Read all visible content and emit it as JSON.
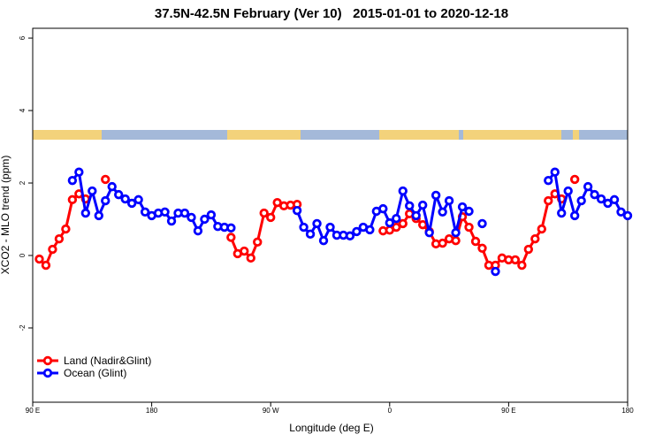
{
  "chart_data": {
    "type": "line",
    "title": "37.5N-42.5N February (Ver 10)   2015-01-01 to 2020-12-18",
    "x_label": "Longitude (deg E)",
    "y_label": "XCO2 - MLO trend (ppm)",
    "xlim": [
      90,
      540
    ],
    "ylim": [
      -4.05,
      6.27
    ],
    "xticks": [
      {
        "value": 90,
        "label": "90 E"
      },
      180,
      {
        "value": 270,
        "label": "90 W"
      },
      {
        "value": 360,
        "label": "0"
      },
      {
        "value": 450,
        "label": "90 E"
      },
      {
        "value": 540,
        "label": "180"
      }
    ],
    "yticks": [
      -2,
      0,
      2,
      4,
      6
    ],
    "legend_position": "bottomleft",
    "series": [
      {
        "name": "Land (Nadir&Glint)",
        "color": "#ff0000",
        "x": [
          95,
          100,
          105,
          110,
          115,
          120,
          125,
          130,
          135,
          145,
          150,
          240,
          245,
          250,
          255,
          260,
          265,
          270,
          275,
          280,
          285,
          290,
          295,
          355,
          360,
          365,
          370,
          375,
          380,
          385,
          390,
          395,
          400,
          405,
          410,
          415,
          420,
          425,
          430,
          435,
          440,
          445,
          450,
          455,
          460,
          465,
          470,
          475,
          480,
          485,
          490,
          495,
          500
        ],
        "values": [
          -0.1,
          -0.27,
          0.17,
          0.46,
          0.73,
          1.54,
          1.7,
          1.56,
          null,
          2.1,
          null,
          0.5,
          0.05,
          0.12,
          -0.07,
          0.37,
          1.17,
          1.05,
          1.46,
          1.37,
          1.39,
          1.41,
          null,
          0.68,
          0.7,
          0.78,
          0.88,
          1.15,
          1.02,
          0.85,
          0.66,
          0.32,
          0.34,
          0.46,
          0.41,
          1.07,
          0.78,
          0.39,
          0.2,
          -0.27,
          -0.27,
          -0.07,
          -0.12,
          -0.12,
          -0.27,
          0.17,
          0.46,
          0.73,
          1.51,
          1.7,
          1.56,
          null,
          2.1
        ]
      },
      {
        "name": "Ocean (Glint)",
        "color": "#0000ff",
        "x": [
          120,
          125,
          130,
          135,
          140,
          145,
          150,
          155,
          160,
          165,
          170,
          175,
          180,
          185,
          190,
          195,
          200,
          205,
          210,
          215,
          220,
          225,
          230,
          235,
          240,
          265,
          290,
          295,
          300,
          305,
          310,
          315,
          320,
          325,
          330,
          335,
          340,
          345,
          350,
          355,
          360,
          365,
          370,
          375,
          380,
          385,
          390,
          395,
          400,
          405,
          410,
          415,
          420,
          425,
          430,
          435,
          440,
          460,
          480,
          485,
          490,
          495,
          500,
          505,
          510,
          515,
          520,
          525,
          530,
          535,
          540
        ],
        "values": [
          2.07,
          2.3,
          1.17,
          1.78,
          1.1,
          1.51,
          1.9,
          1.68,
          1.56,
          1.44,
          1.54,
          1.2,
          1.1,
          1.17,
          1.2,
          0.95,
          1.17,
          1.17,
          1.05,
          0.68,
          1.0,
          1.12,
          0.8,
          0.78,
          0.76,
          null,
          1.24,
          0.78,
          0.59,
          0.88,
          0.41,
          0.78,
          0.56,
          0.56,
          0.54,
          0.66,
          0.78,
          0.71,
          1.22,
          1.29,
          0.9,
          1.02,
          1.78,
          1.37,
          1.1,
          1.39,
          0.63,
          1.66,
          1.2,
          1.51,
          0.63,
          1.34,
          1.22,
          null,
          0.88,
          null,
          -0.44,
          null,
          2.07,
          2.3,
          1.17,
          1.78,
          1.1,
          1.51,
          1.9,
          1.68,
          1.56,
          1.44,
          1.54,
          1.2,
          1.1
        ]
      }
    ]
  }
}
